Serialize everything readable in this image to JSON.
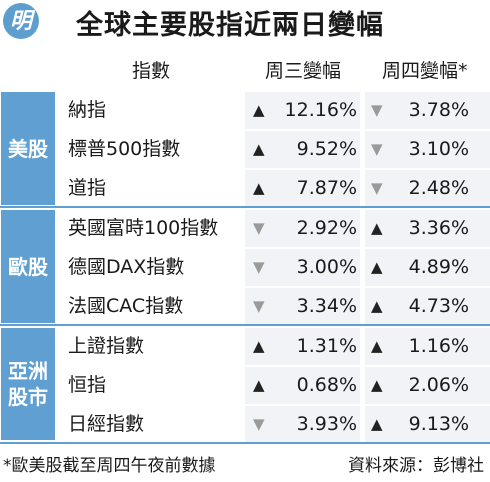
{
  "title": {
    "logo_char": "明",
    "text": "全球主要股指近兩日變幅"
  },
  "headers": {
    "index": "指數",
    "wednesday": "周三變幅",
    "thursday": "周四變幅*"
  },
  "regions": [
    {
      "label": "美股",
      "rows": [
        {
          "name": "納指",
          "wed": "12.16%",
          "wed_dir": "up",
          "thu": "3.78%",
          "thu_dir": "down"
        },
        {
          "name": "標普500指數",
          "wed": "9.52%",
          "wed_dir": "up",
          "thu": "3.10%",
          "thu_dir": "down"
        },
        {
          "name": "道指",
          "wed": "7.87%",
          "wed_dir": "up",
          "thu": "2.48%",
          "thu_dir": "down"
        }
      ]
    },
    {
      "label": "歐股",
      "rows": [
        {
          "name": "英國富時100指數",
          "wed": "2.92%",
          "wed_dir": "down",
          "thu": "3.36%",
          "thu_dir": "up"
        },
        {
          "name": "德國DAX指數",
          "wed": "3.00%",
          "wed_dir": "down",
          "thu": "4.89%",
          "thu_dir": "up"
        },
        {
          "name": "法國CAC指數",
          "wed": "3.34%",
          "wed_dir": "down",
          "thu": "4.73%",
          "thu_dir": "up"
        }
      ]
    },
    {
      "label": "亞洲股市",
      "label_lines": [
        "亞洲",
        "股市"
      ],
      "rows": [
        {
          "name": "上證指數",
          "wed": "1.31%",
          "wed_dir": "up",
          "thu": "1.16%",
          "thu_dir": "up"
        },
        {
          "name": "恒指",
          "wed": "0.68%",
          "wed_dir": "up",
          "thu": "2.06%",
          "thu_dir": "up"
        },
        {
          "name": "日經指數",
          "wed": "3.93%",
          "wed_dir": "down",
          "thu": "9.13%",
          "thu_dir": "up"
        }
      ]
    }
  ],
  "arrows": {
    "up": "▲",
    "down": "▼"
  },
  "colors": {
    "region_bg": "#5f9fd1",
    "up_arrow": "#222222",
    "down_arrow": "#9a9a9a",
    "cell_bg": "#f1f3f6"
  },
  "footer": {
    "note": "*歐美股截至周四午夜前數據",
    "source": "資料來源：彭博社"
  }
}
